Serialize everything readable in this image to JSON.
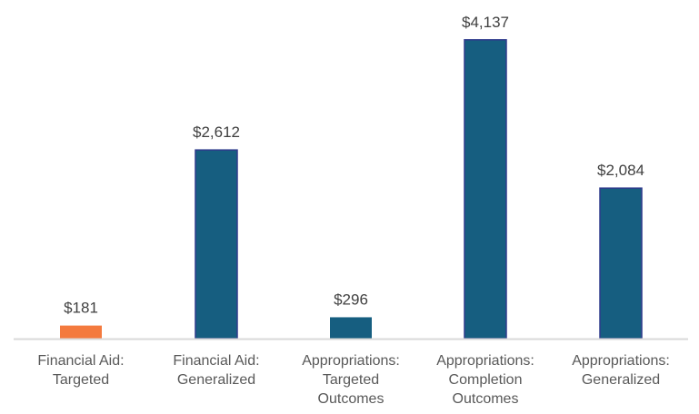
{
  "chart_data": {
    "type": "bar",
    "categories": [
      [
        "Financial Aid:",
        "Targeted"
      ],
      [
        "Financial Aid:",
        "Generalized"
      ],
      [
        "Appropriations:",
        "Targeted",
        "Outcomes"
      ],
      [
        "Appropriations:",
        "Completion",
        "Outcomes"
      ],
      [
        "Appropriations:",
        "Generalized"
      ]
    ],
    "values": [
      181,
      2612,
      296,
      4137,
      2084
    ],
    "data_labels": [
      "$181",
      "$2,612",
      "$296",
      "$4,137",
      "$2,084"
    ],
    "colors": [
      "#F47A3E",
      "#165E80",
      "#165E80",
      "#165E80",
      "#165E80"
    ],
    "axis_color": "#D9D9D9",
    "ylim": [
      0,
      4600
    ],
    "grid": false,
    "title": "",
    "xlabel": "",
    "ylabel": ""
  }
}
